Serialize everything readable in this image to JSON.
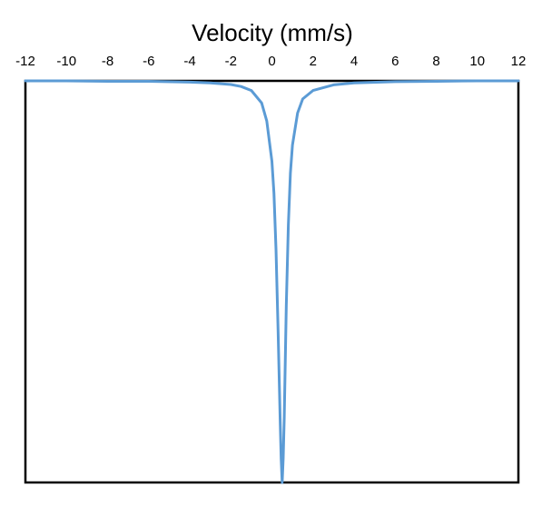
{
  "chart_data": {
    "type": "line",
    "title": "",
    "xlabel": "Velocity (mm/s)",
    "ylabel": "",
    "xlim": [
      -12,
      12
    ],
    "ylim": [
      0,
      1
    ],
    "x_ticks": [
      "-12",
      "-10",
      "-8",
      "-6",
      "-4",
      "-2",
      "0",
      "2",
      "4",
      "6",
      "8",
      "10",
      "12"
    ],
    "x_axis_position": "top",
    "grid": false,
    "legend": "none",
    "series": [
      {
        "color": "#5b9bd5",
        "x": [
          -12,
          -10,
          -8,
          -6,
          -4,
          -3,
          -2,
          -1.5,
          -1,
          -0.5,
          -0.25,
          0,
          0.1,
          0.2,
          0.3,
          0.4,
          0.45,
          0.5,
          0.55,
          0.6,
          0.65,
          0.7,
          0.8,
          0.9,
          1.0,
          1.25,
          1.5,
          2,
          3,
          4,
          6,
          8,
          10,
          12
        ],
        "y": [
          1.0,
          1.0,
          0.999,
          0.999,
          0.997,
          0.995,
          0.991,
          0.986,
          0.976,
          0.945,
          0.9,
          0.8,
          0.72,
          0.58,
          0.38,
          0.16,
          0.06,
          0.0,
          0.06,
          0.16,
          0.3,
          0.44,
          0.64,
          0.77,
          0.84,
          0.92,
          0.955,
          0.976,
          0.99,
          0.995,
          0.998,
          0.999,
          1.0,
          1.0
        ]
      }
    ]
  }
}
